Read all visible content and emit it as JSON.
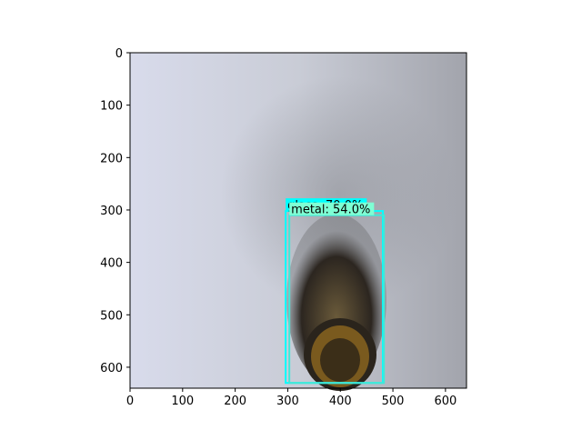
{
  "chart_data": {
    "type": "image",
    "xlim": [
      0,
      640
    ],
    "ylim": [
      640,
      0
    ],
    "xticks": [
      0,
      100,
      200,
      300,
      400,
      500,
      600
    ],
    "yticks": [
      0,
      100,
      200,
      300,
      400,
      500,
      600
    ],
    "detections": [
      {
        "label": "glass: 70.0%",
        "color": "#00ffff",
        "xmin": 296,
        "ymin": 302,
        "xmax": 481,
        "ymax": 630
      },
      {
        "label": "metal: 54.0%",
        "color": "#40e8d8",
        "label_color": "#7fffd4",
        "xmin": 303,
        "ymin": 310,
        "xmax": 483,
        "ymax": 630
      }
    ]
  }
}
